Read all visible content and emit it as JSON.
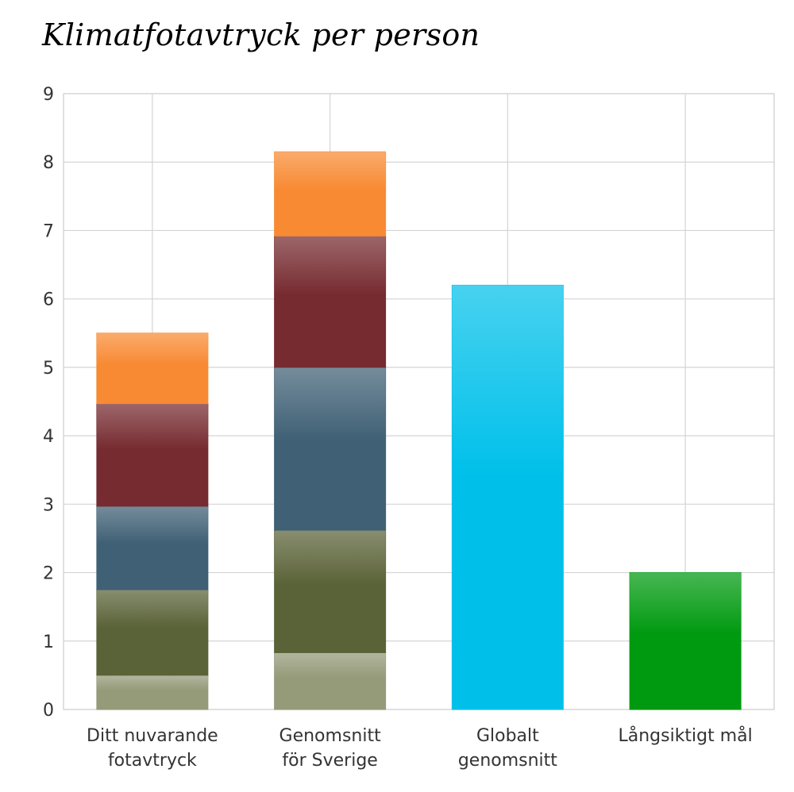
{
  "chart_data": {
    "type": "bar",
    "stacked": true,
    "title": "Klimatfotavtryck per person",
    "xlabel": "",
    "ylabel": "",
    "ylim": [
      0,
      9
    ],
    "yticks": [
      "0",
      "1",
      "2",
      "3",
      "4",
      "5",
      "6",
      "7",
      "8",
      "9"
    ],
    "grid": true,
    "legend": "none",
    "categories": [
      [
        "Ditt nuvarande",
        "fotavtryck"
      ],
      [
        "Genomsnitt",
        "för Sverige"
      ],
      [
        "Globalt",
        "genomsnitt"
      ],
      [
        "Långsiktigt mål"
      ]
    ],
    "series": [
      {
        "color": "#959a79",
        "values": [
          0.5,
          0.83,
          0,
          0
        ]
      },
      {
        "color": "#5a6237",
        "values": [
          1.25,
          1.79,
          0,
          0
        ]
      },
      {
        "color": "#3f6075",
        "values": [
          1.22,
          2.38,
          0,
          0
        ]
      },
      {
        "color": "#762b30",
        "values": [
          1.5,
          1.92,
          0,
          0
        ]
      },
      {
        "color": "#f88a33",
        "values": [
          1.03,
          1.23,
          0,
          0
        ]
      },
      {
        "color": "#00c0ea",
        "values": [
          0,
          0,
          6.2,
          0
        ]
      },
      {
        "color": "#009a10",
        "values": [
          0,
          0,
          0,
          2.0
        ]
      }
    ],
    "colors": {
      "grid": "#d4d4d4",
      "axis": "#cccccc",
      "text": "#333333"
    }
  }
}
